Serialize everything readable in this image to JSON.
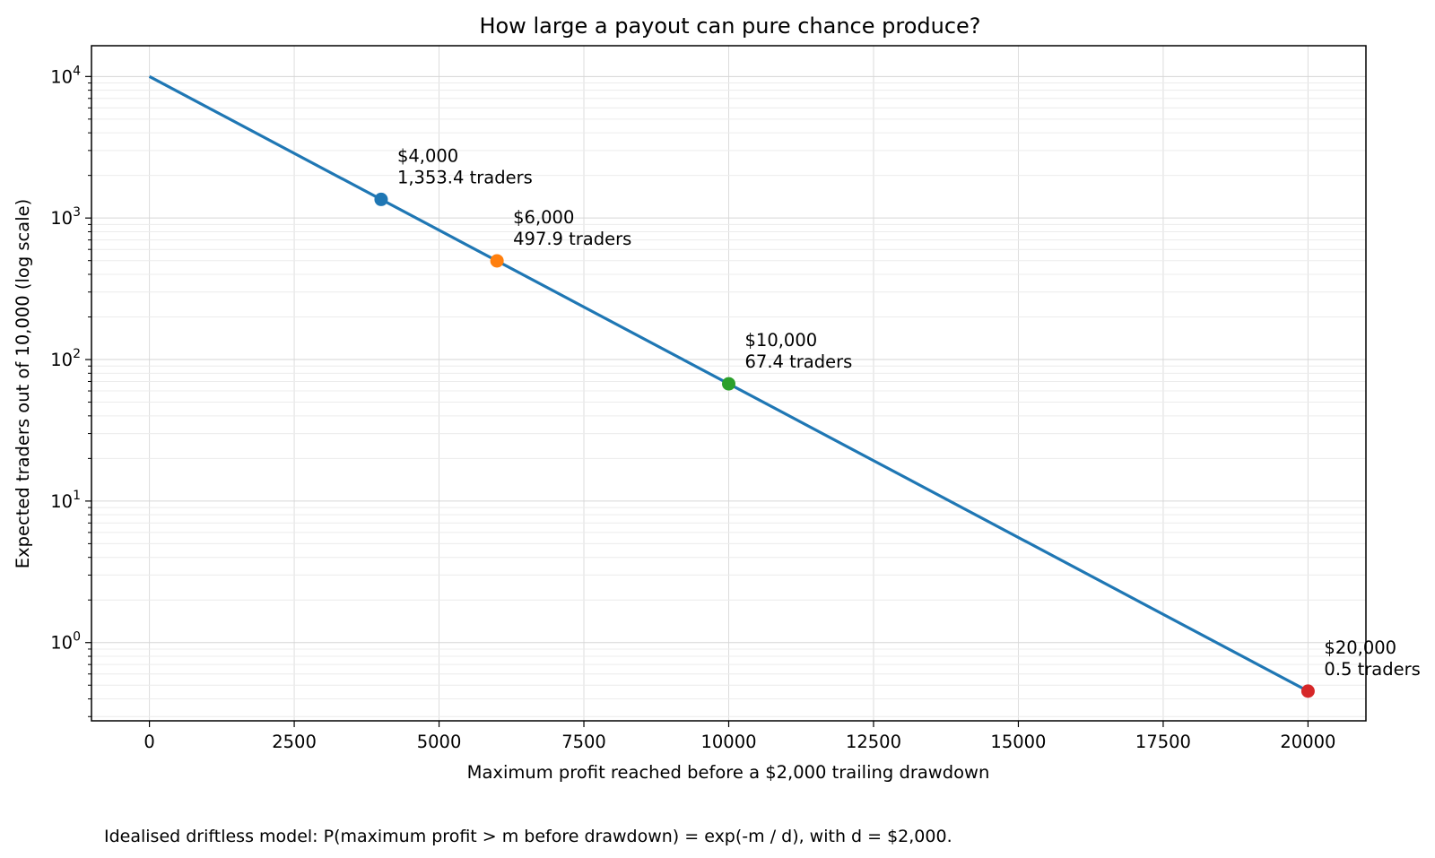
{
  "chart_data": {
    "type": "line",
    "title": "How large a payout can pure chance produce?",
    "xlabel": "Maximum profit reached before a $2,000 trailing drawdown",
    "ylabel": "Expected traders out of 10,000 (log scale)",
    "xlim": [
      -1000,
      21000
    ],
    "ylim": [
      0.28,
      16500
    ],
    "yscale": "log",
    "grid": true,
    "x_ticks": [
      0,
      2500,
      5000,
      7500,
      10000,
      12500,
      15000,
      17500,
      20000
    ],
    "x_tick_labels": [
      "0",
      "2500",
      "5000",
      "7500",
      "10000",
      "12500",
      "15000",
      "17500",
      "20000"
    ],
    "y_ticks": [
      1,
      10,
      100,
      1000,
      10000
    ],
    "y_tick_labels": [
      {
        "base": "10",
        "exp": "0"
      },
      {
        "base": "10",
        "exp": "1"
      },
      {
        "base": "10",
        "exp": "2"
      },
      {
        "base": "10",
        "exp": "3"
      },
      {
        "base": "10",
        "exp": "4"
      }
    ],
    "series": [
      {
        "color": "#1f77b4",
        "x": [
          0,
          20000
        ],
        "y": [
          10000,
          0.454
        ]
      }
    ],
    "points": [
      {
        "x": 4000,
        "y": 1353.4,
        "color": "#1f77b4",
        "label_line1": "$4,000",
        "label_line2": "1,353.4 traders"
      },
      {
        "x": 6000,
        "y": 497.9,
        "color": "#ff7f0e",
        "label_line1": "$6,000",
        "label_line2": "497.9 traders"
      },
      {
        "x": 10000,
        "y": 67.4,
        "color": "#2ca02c",
        "label_line1": "$10,000",
        "label_line2": "67.4 traders"
      },
      {
        "x": 20000,
        "y": 0.454,
        "color": "#d62728",
        "label_line1": "$20,000",
        "label_line2": "0.5 traders"
      }
    ]
  },
  "footnote": "Idealised driftless model: P(maximum profit > m before drawdown) = exp(-m / d), with d = $2,000."
}
